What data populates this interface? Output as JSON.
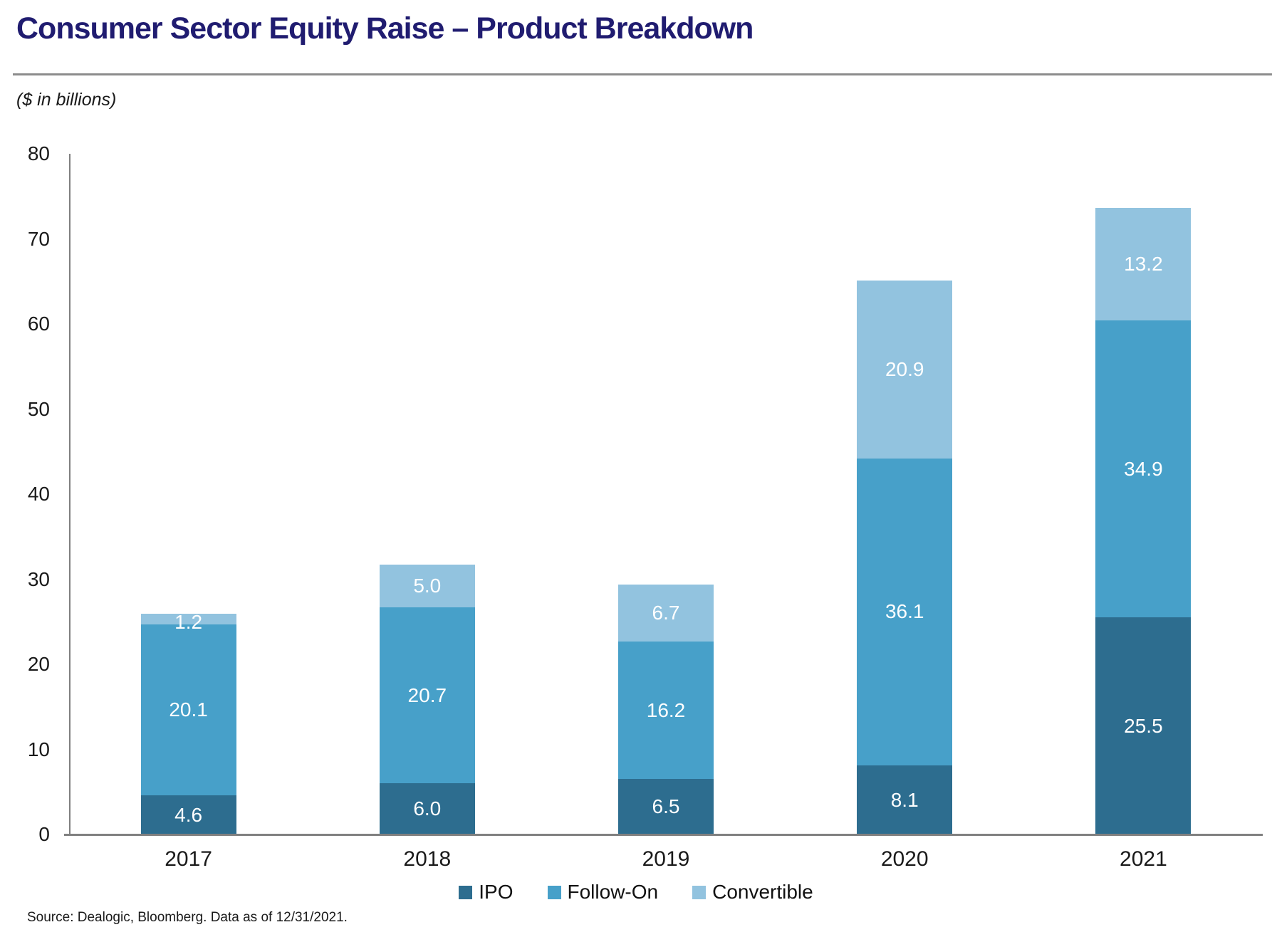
{
  "header": {
    "title": "Consumer Sector Equity Raise – Product Breakdown",
    "units_note": "($ in billions)"
  },
  "chart_data": {
    "type": "bar",
    "stacked": true,
    "title": "Consumer Sector Equity Raise – Product Breakdown",
    "xlabel": "",
    "ylabel": "($ in billions)",
    "categories": [
      "2017",
      "2018",
      "2019",
      "2020",
      "2021"
    ],
    "series": [
      {
        "name": "IPO",
        "color": "#2D6D8F",
        "values": [
          4.6,
          6.0,
          6.5,
          8.1,
          25.5
        ]
      },
      {
        "name": "Follow-On",
        "color": "#47A0C9",
        "values": [
          20.1,
          20.7,
          16.2,
          36.1,
          34.9
        ]
      },
      {
        "name": "Convertible",
        "color": "#92C3DF",
        "values": [
          1.2,
          5.0,
          6.7,
          20.9,
          13.2
        ]
      }
    ],
    "totals": [
      25.9,
      31.7,
      29.4,
      65.1,
      73.6
    ],
    "ylim": [
      0,
      80
    ],
    "yticks": [
      0,
      10,
      20,
      30,
      40,
      50,
      60,
      70,
      80
    ],
    "grid": false,
    "legend_position": "bottom",
    "value_label_format": "one_decimal",
    "value_label_color": "#FFFFFF"
  },
  "footer": {
    "source": "Source: Dealogic, Bloomberg. Data as of 12/31/2021."
  },
  "colors": {
    "title": "#201C70",
    "axis": "#808080",
    "separator": "#8C8C8C",
    "text": "#1a1a1a"
  }
}
